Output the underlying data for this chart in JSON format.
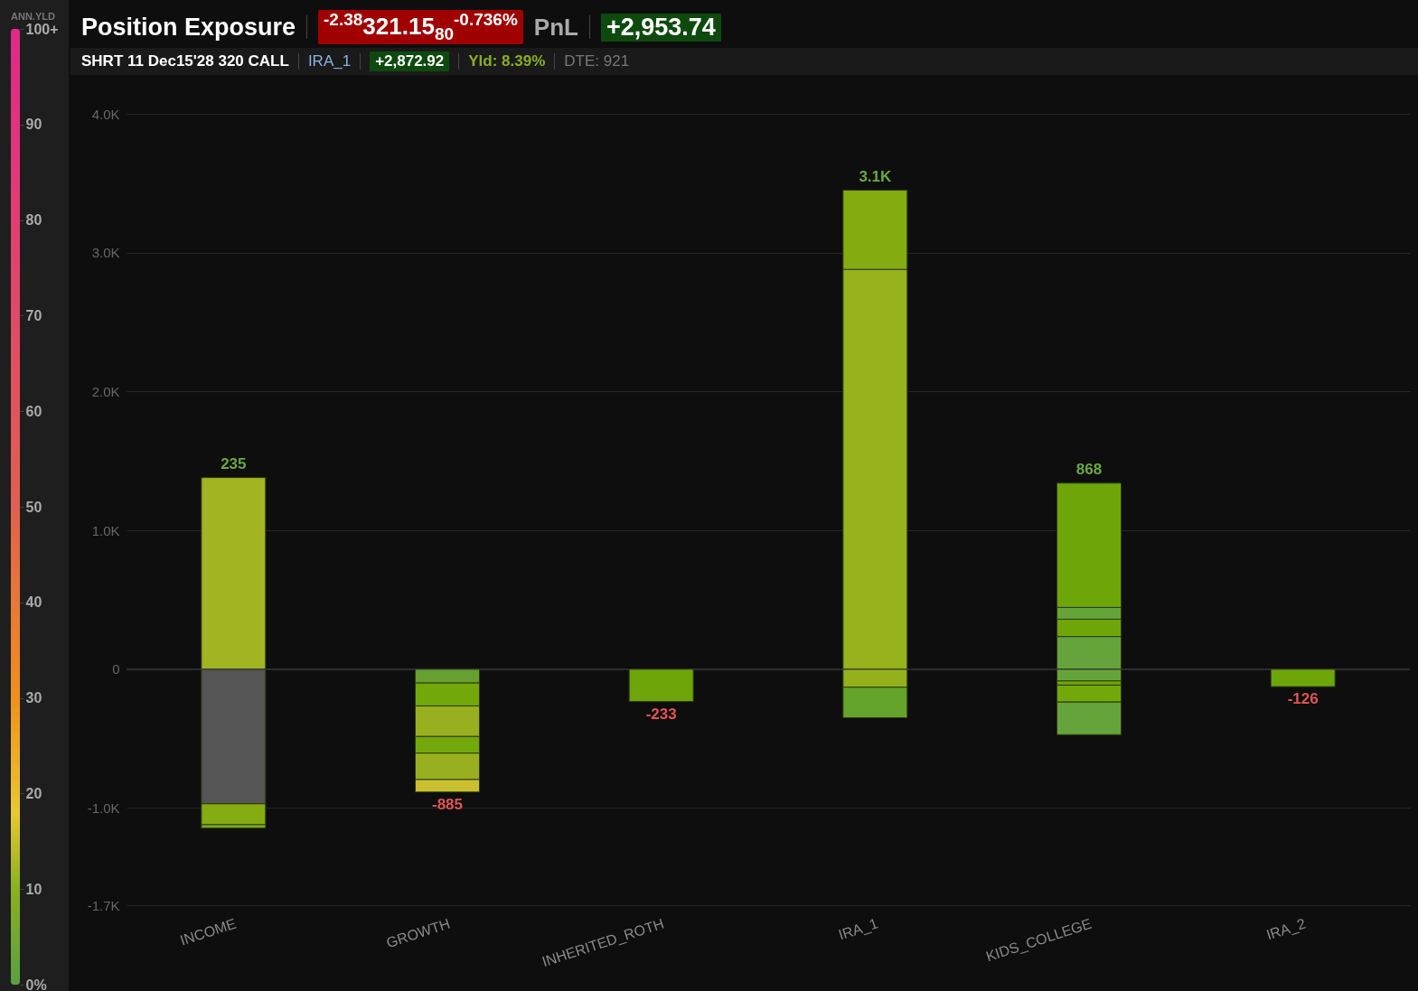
{
  "chart_data": {
    "type": "bar",
    "title": "Position Exposure",
    "stacked": true,
    "annotations": [
      "$^{-2.38}$321.15$_{80}$$^{-0.736%}$",
      "PnL",
      "+2,953.74",
      "SHRT 11 Dec15'28 320 CALL",
      "IRA_1",
      "+2,872.92",
      "Yld: 8.39%",
      "DTE: 921"
    ],
    "categories": [
      "INCOME",
      "GROWTH",
      "INHERITED_ROTH",
      "IRA_1",
      "KIDS_COLLEGE",
      "IRA_2"
    ],
    "series": [
      {
        "values": [
          1380,
          -100,
          -233,
          2880,
          235,
          -126
        ],
        "colors": [
          "#a3b422",
          "#65a030",
          "#6ea60a",
          "#96b21c",
          "#64a43a",
          "#6ea60a"
        ]
      },
      {
        "values": [
          -970,
          -165,
          null,
          570,
          125,
          null
        ],
        "colors": [
          "#555555",
          "#72a80a",
          null,
          "#84ac10",
          "#6ea60a",
          null
        ]
      },
      {
        "values": [
          -150,
          -220,
          null,
          -130,
          85,
          null
        ],
        "colors": [
          "#86ac14",
          "#98b020",
          null,
          "#94b01c",
          "#64a43a",
          null
        ]
      },
      {
        "values": [
          -25,
          -120,
          null,
          -220,
          895,
          null
        ],
        "colors": [
          "#7aa818",
          "#72a80a",
          null,
          "#64a42a",
          "#6ea60a",
          null
        ]
      },
      {
        "values": [
          null,
          -190,
          null,
          null,
          -85,
          null
        ],
        "colors": [
          null,
          "#98b020",
          null,
          null,
          "#64a43a",
          null
        ]
      },
      {
        "values": [
          null,
          -90,
          null,
          null,
          -30,
          null
        ],
        "colors": [
          null,
          "#c8c030",
          null,
          null,
          "#6ea60a",
          null
        ]
      },
      {
        "values": [
          null,
          null,
          null,
          null,
          -122,
          null
        ],
        "colors": [
          null,
          null,
          null,
          null,
          "#72a80a",
          null
        ]
      },
      {
        "values": [
          null,
          null,
          null,
          null,
          -235,
          null
        ],
        "colors": [
          null,
          null,
          null,
          null,
          "#64a43a",
          null
        ]
      }
    ],
    "totals": [
      "235",
      "-885",
      "-233",
      "3.1K",
      "868",
      "-126"
    ],
    "ylim": [
      -1700,
      4000
    ],
    "yticks": [
      {
        "value": -1700,
        "label": "-1.7K"
      },
      {
        "value": -1000,
        "label": "-1.0K"
      },
      0,
      {
        "value": 1000,
        "label": "1.0K"
      },
      {
        "value": 2000,
        "label": "2.0K"
      },
      {
        "value": 3000,
        "label": "3.0K"
      },
      {
        "value": 4000,
        "label": "4.0K"
      }
    ],
    "grid": "y",
    "clabel": "ANN.YLD",
    "clim": [
      0,
      100
    ],
    "cticks": [
      {
        "value": 0,
        "label": "0%"
      },
      10,
      20,
      30,
      40,
      50,
      60,
      70,
      80,
      90,
      {
        "value": 100,
        "label": "100+"
      }
    ]
  }
}
